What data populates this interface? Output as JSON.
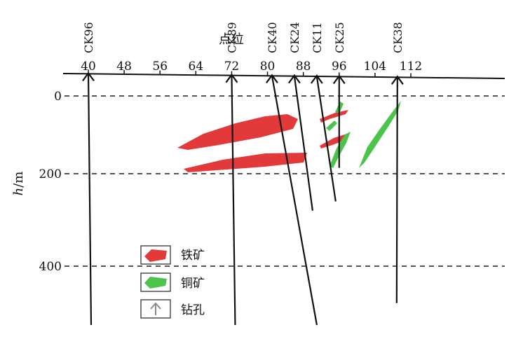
{
  "x_axis": {
    "title": "点位",
    "ticks": [
      40,
      48,
      56,
      64,
      72,
      80,
      88,
      96,
      104,
      112
    ]
  },
  "y_axis": {
    "title_main": "h",
    "title_unit": "/m",
    "ticks": [
      0,
      200,
      400
    ]
  },
  "drill_holes": [
    {
      "id": "CK96",
      "label": "CK96",
      "point": 40,
      "bottom_depth": 590
    },
    {
      "id": "CK89",
      "label": "CK89",
      "point": 72,
      "bottom_depth": 585
    },
    {
      "id": "CK40",
      "label": "CK40",
      "point": 81,
      "bottom_depth": 550
    },
    {
      "id": "CK24",
      "label": "CK24",
      "point": 86,
      "bottom_depth": 280
    },
    {
      "id": "CK11",
      "label": "CK11",
      "point": 91,
      "bottom_depth": 260
    },
    {
      "id": "CK25",
      "label": "CK25",
      "point": 96,
      "bottom_depth": 185
    },
    {
      "id": "CK38",
      "label": "CK38",
      "point": 109,
      "bottom_depth": 480
    }
  ],
  "colors": {
    "iron": "#e23a3a",
    "copper": "#4cc34a",
    "line": "#111111",
    "grid": "#555555",
    "drill_icon": "#8a8a8a"
  },
  "legend": {
    "iron_label": "铁矿",
    "copper_label": "铜矿",
    "drill_label": "钻孔"
  }
}
